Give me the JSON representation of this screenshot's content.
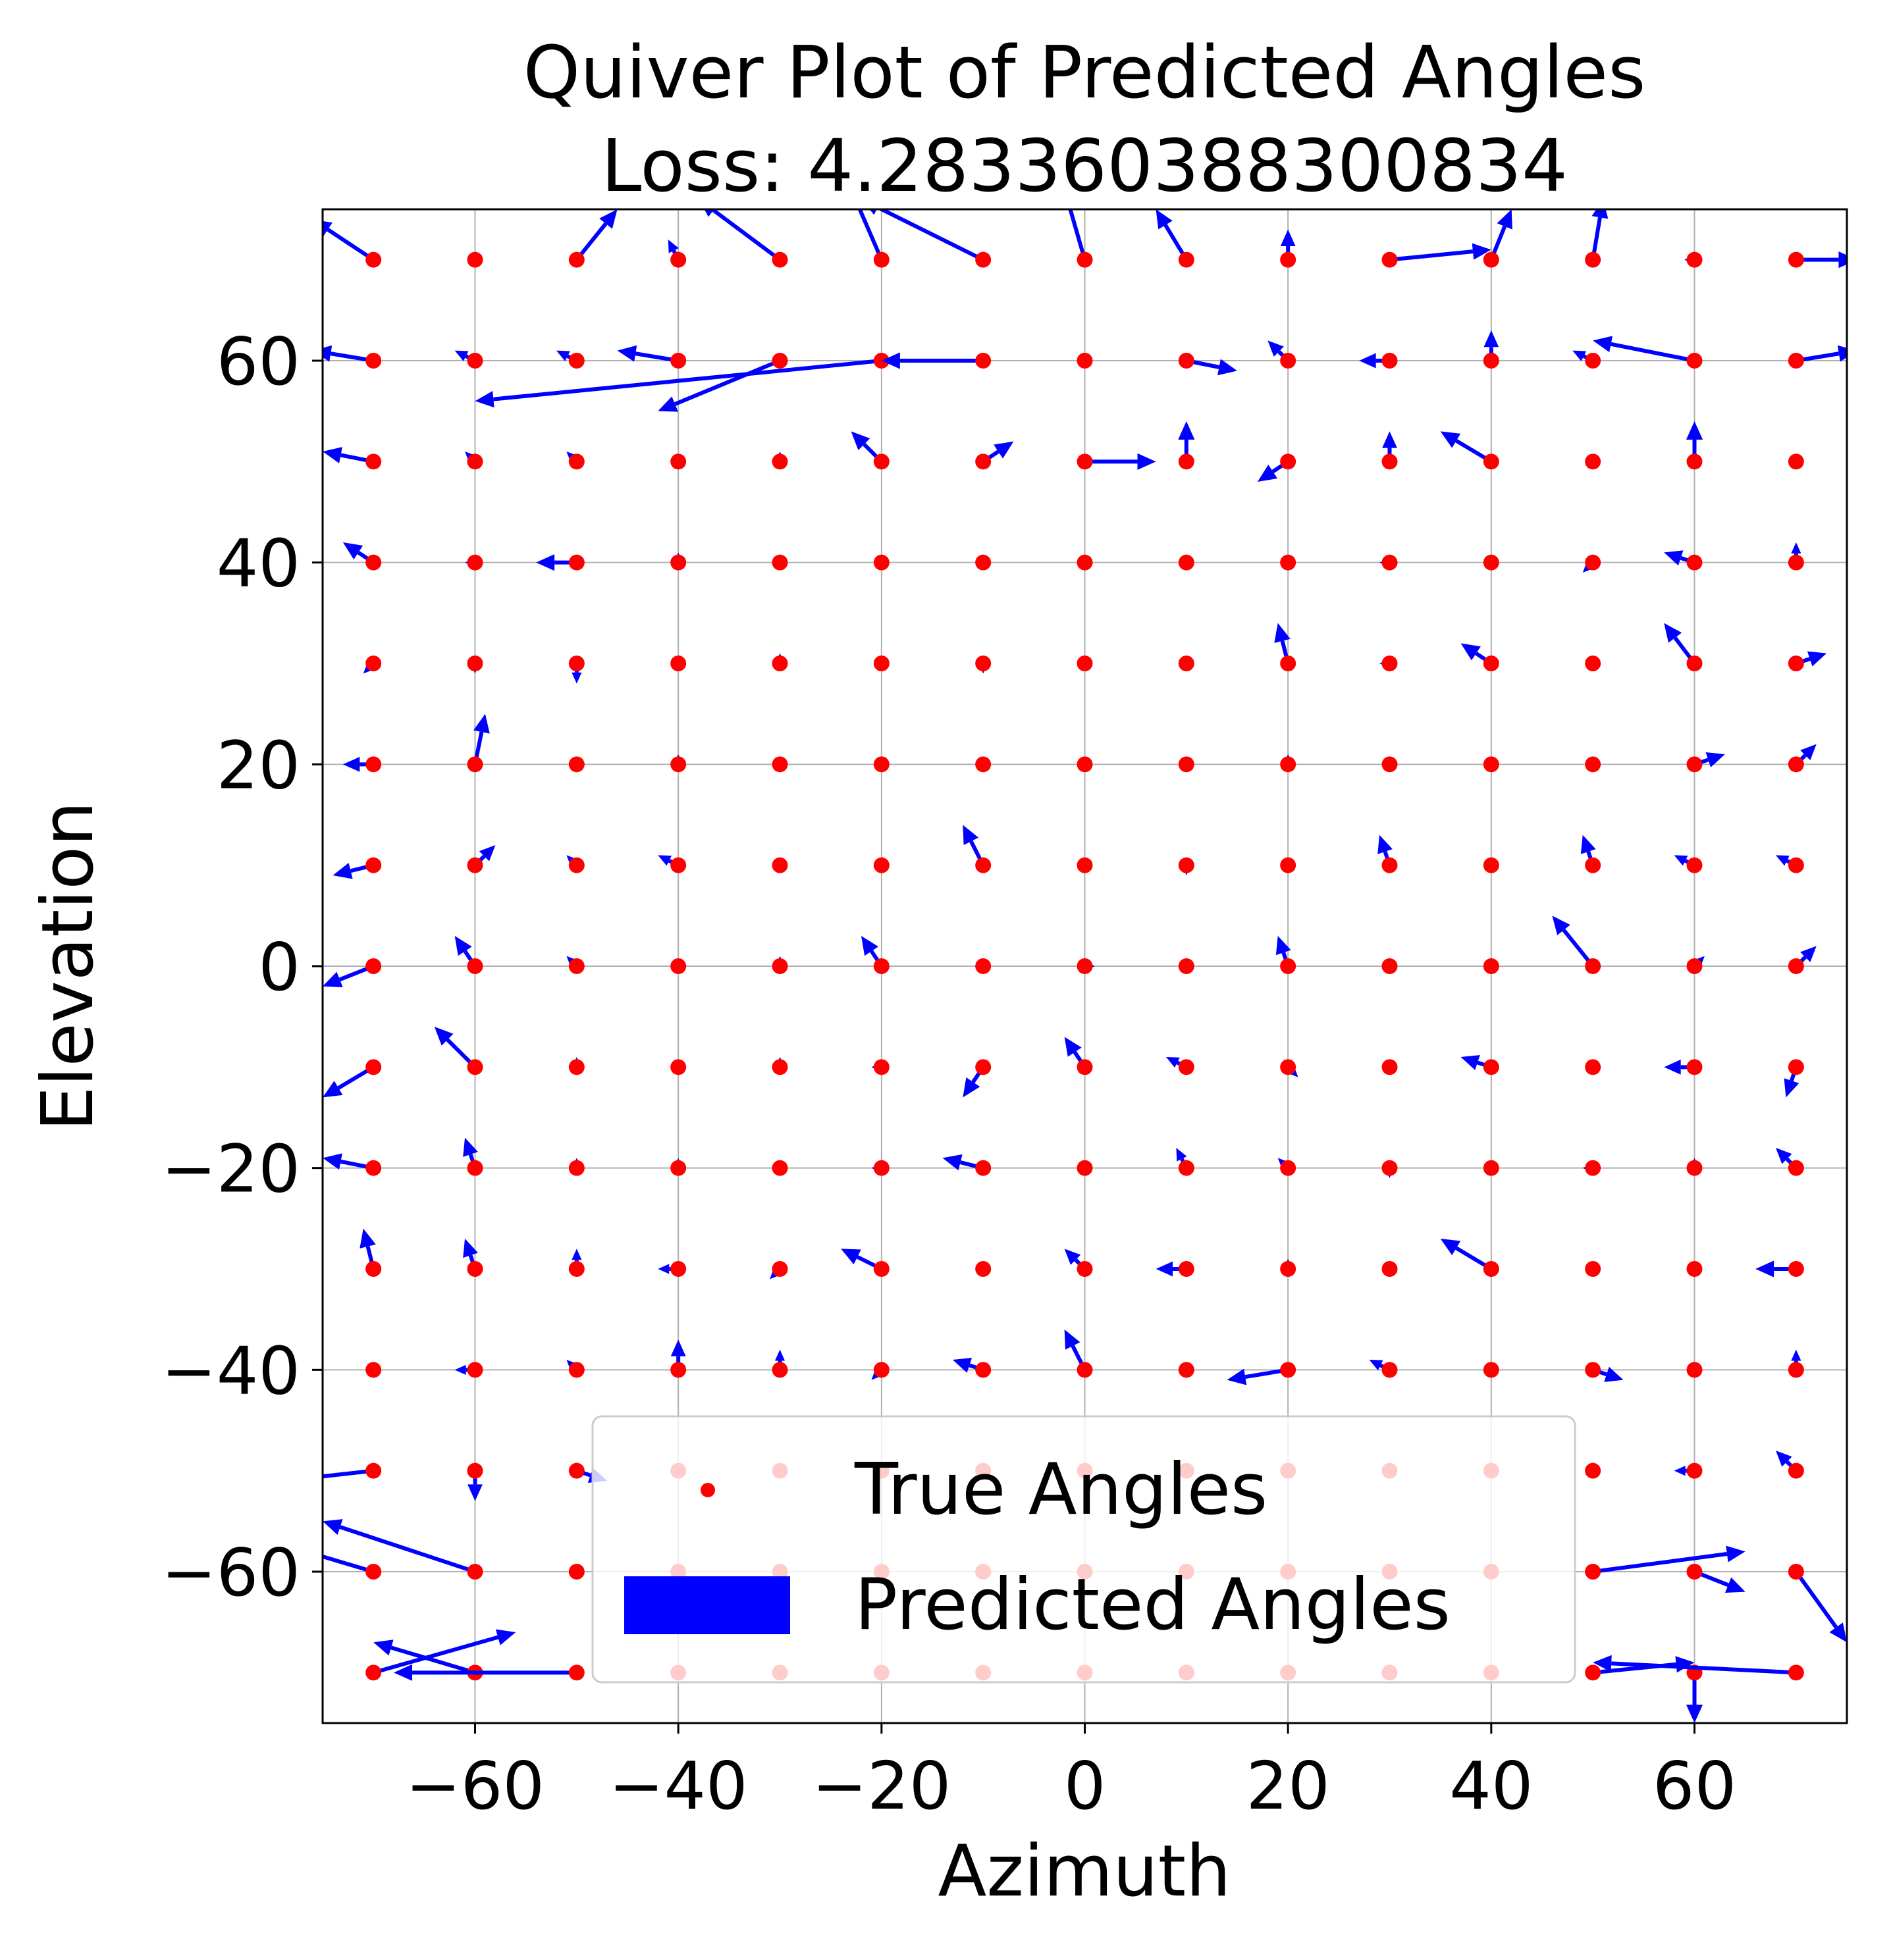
{
  "chart_data": {
    "type": "quiver",
    "title": "Quiver Plot of Predicted Angles",
    "subtitle": "Loss: 4.283360388300834",
    "xlabel": "Azimuth",
    "ylabel": "Elevation",
    "xlim": [
      -75,
      75
    ],
    "ylim": [
      -75,
      75
    ],
    "xticks": [
      -60,
      -40,
      -20,
      0,
      20,
      40,
      60
    ],
    "xtick_labels": [
      "−60",
      "−40",
      "−20",
      "0",
      "20",
      "40",
      "60"
    ],
    "yticks": [
      -60,
      -40,
      -20,
      0,
      20,
      40,
      60
    ],
    "ytick_labels": [
      "−60",
      "−40",
      "−20",
      "0",
      "20",
      "40",
      "60"
    ],
    "grid": true,
    "legend": {
      "placement": "lower center",
      "entries": [
        "True Angles",
        "Predicted Angles"
      ]
    },
    "colors": {
      "true": "#ff0000",
      "predicted": "#0000ff"
    },
    "azimuths": [
      -70,
      -60,
      -50,
      -40,
      -30,
      -20,
      -10,
      0,
      10,
      20,
      30,
      40,
      50,
      60,
      70
    ],
    "elevations": [
      70,
      60,
      50,
      40,
      30,
      20,
      10,
      0,
      -10,
      -20,
      -30,
      -40,
      -50,
      -60,
      -70
    ],
    "predicted_offsets": [
      [
        [
          -6,
          4
        ],
        [
          0,
          0
        ],
        [
          4,
          5
        ],
        [
          -1,
          2
        ],
        [
          -8,
          6
        ],
        [
          -3,
          7
        ],
        [
          -12,
          6
        ],
        [
          -2,
          7
        ],
        [
          -3,
          5
        ],
        [
          0,
          3
        ],
        [
          10,
          1
        ],
        [
          2,
          5
        ],
        [
          1,
          6
        ],
        [
          -1,
          0
        ],
        [
          6,
          0
        ]
      ],
      [
        [
          -6,
          1
        ],
        [
          -2,
          1
        ],
        [
          -2,
          1
        ],
        [
          -6,
          1
        ],
        [
          -12,
          -5
        ],
        [
          -40,
          -4
        ],
        [
          -10,
          0
        ],
        [
          0,
          0
        ],
        [
          5,
          -1
        ],
        [
          -2,
          2
        ],
        [
          -3,
          0
        ],
        [
          0,
          3
        ],
        [
          -2,
          1
        ],
        [
          -10,
          2
        ],
        [
          6,
          1
        ]
      ],
      [
        [
          -5,
          1
        ],
        [
          -1,
          1
        ],
        [
          -1,
          1
        ],
        [
          0,
          0
        ],
        [
          0,
          1
        ],
        [
          -3,
          3
        ],
        [
          3,
          2
        ],
        [
          7,
          0
        ],
        [
          0,
          4
        ],
        [
          -3,
          -2
        ],
        [
          0,
          3
        ],
        [
          -5,
          3
        ],
        [
          0,
          0
        ],
        [
          0,
          4
        ],
        [
          0,
          0
        ]
      ],
      [
        [
          -3,
          2
        ],
        [
          -1,
          0
        ],
        [
          -4,
          0
        ],
        [
          0,
          1
        ],
        [
          0,
          0
        ],
        [
          0,
          0
        ],
        [
          0,
          0
        ],
        [
          0,
          0
        ],
        [
          0,
          0
        ],
        [
          0,
          0
        ],
        [
          -1,
          0
        ],
        [
          0,
          0
        ],
        [
          -1,
          -1
        ],
        [
          -3,
          1
        ],
        [
          0,
          2
        ]
      ],
      [
        [
          -1,
          -1
        ],
        [
          0,
          -1
        ],
        [
          0,
          -2
        ],
        [
          0,
          0
        ],
        [
          0,
          1
        ],
        [
          0,
          0
        ],
        [
          0,
          -1
        ],
        [
          0,
          0
        ],
        [
          0,
          0
        ],
        [
          -1,
          4
        ],
        [
          -1,
          0
        ],
        [
          -3,
          2
        ],
        [
          0,
          0
        ],
        [
          -3,
          4
        ],
        [
          3,
          1
        ]
      ],
      [
        [
          -3,
          0
        ],
        [
          1,
          5
        ],
        [
          0,
          0
        ],
        [
          0,
          1
        ],
        [
          0,
          0
        ],
        [
          0,
          0
        ],
        [
          0,
          0
        ],
        [
          0,
          0
        ],
        [
          0,
          0
        ],
        [
          0,
          1
        ],
        [
          0,
          0
        ],
        [
          0,
          0
        ],
        [
          0,
          0
        ],
        [
          3,
          1
        ],
        [
          2,
          2
        ]
      ],
      [
        [
          -4,
          -1
        ],
        [
          2,
          2
        ],
        [
          -1,
          1
        ],
        [
          -2,
          1
        ],
        [
          0,
          0
        ],
        [
          0,
          0
        ],
        [
          -2,
          4
        ],
        [
          0,
          0
        ],
        [
          0,
          -1
        ],
        [
          0,
          0
        ],
        [
          -1,
          3
        ],
        [
          0,
          0
        ],
        [
          -1,
          3
        ],
        [
          -2,
          1
        ],
        [
          -2,
          1
        ]
      ],
      [
        [
          -5,
          -2
        ],
        [
          -2,
          3
        ],
        [
          -1,
          1
        ],
        [
          0,
          0
        ],
        [
          0,
          1
        ],
        [
          -2,
          3
        ],
        [
          0,
          0
        ],
        [
          1,
          0
        ],
        [
          0,
          0
        ],
        [
          -1,
          3
        ],
        [
          0,
          0
        ],
        [
          0,
          0
        ],
        [
          -4,
          5
        ],
        [
          1,
          1
        ],
        [
          2,
          2
        ]
      ],
      [
        [
          -5,
          -3
        ],
        [
          -4,
          4
        ],
        [
          0,
          1
        ],
        [
          0,
          0
        ],
        [
          0,
          1
        ],
        [
          -1,
          0
        ],
        [
          -2,
          -3
        ],
        [
          -2,
          3
        ],
        [
          -2,
          1
        ],
        [
          1,
          -1
        ],
        [
          0,
          0
        ],
        [
          -3,
          1
        ],
        [
          0,
          0
        ],
        [
          -3,
          0
        ],
        [
          -1,
          -3
        ]
      ],
      [
        [
          -5,
          1
        ],
        [
          -1,
          3
        ],
        [
          0,
          1
        ],
        [
          0,
          1
        ],
        [
          0,
          0
        ],
        [
          -1,
          0
        ],
        [
          -4,
          1
        ],
        [
          0,
          0
        ],
        [
          -1,
          2
        ],
        [
          -1,
          1
        ],
        [
          0,
          -1
        ],
        [
          0,
          0
        ],
        [
          -1,
          0
        ],
        [
          0,
          1
        ],
        [
          -2,
          2
        ]
      ],
      [
        [
          -1,
          4
        ],
        [
          -1,
          3
        ],
        [
          0,
          2
        ],
        [
          -2,
          0
        ],
        [
          -1,
          -1
        ],
        [
          -4,
          2
        ],
        [
          0,
          0
        ],
        [
          -2,
          2
        ],
        [
          -3,
          0
        ],
        [
          0,
          1
        ],
        [
          0,
          0
        ],
        [
          -5,
          3
        ],
        [
          0,
          0
        ],
        [
          0,
          0
        ],
        [
          -4,
          0
        ]
      ],
      [
        [
          0,
          0
        ],
        [
          -2,
          0
        ],
        [
          -1,
          1
        ],
        [
          0,
          3
        ],
        [
          0,
          2
        ],
        [
          -1,
          -1
        ],
        [
          -3,
          1
        ],
        [
          -2,
          4
        ],
        [
          0,
          0
        ],
        [
          -6,
          -1
        ],
        [
          -2,
          1
        ],
        [
          0,
          0
        ],
        [
          3,
          -1
        ],
        [
          0,
          0
        ],
        [
          0,
          2
        ]
      ],
      [
        [
          -9,
          -1
        ],
        [
          0,
          -3
        ],
        [
          3,
          -1
        ],
        [
          0,
          0
        ],
        [
          0,
          0
        ],
        [
          0,
          0
        ],
        [
          0,
          0
        ],
        [
          0,
          0
        ],
        [
          0,
          0
        ],
        [
          0,
          0
        ],
        [
          0,
          0
        ],
        [
          0,
          0
        ],
        [
          0,
          0
        ],
        [
          -2,
          0
        ],
        [
          -2,
          2
        ]
      ],
      [
        [
          -10,
          3
        ],
        [
          -15,
          5
        ],
        [
          0,
          0
        ],
        [
          0,
          0
        ],
        [
          0,
          0
        ],
        [
          0,
          0
        ],
        [
          0,
          0
        ],
        [
          0,
          0
        ],
        [
          0,
          0
        ],
        [
          0,
          0
        ],
        [
          0,
          0
        ],
        [
          0,
          0
        ],
        [
          15,
          2
        ],
        [
          5,
          -2
        ],
        [
          5,
          -7
        ]
      ],
      [
        [
          14,
          4
        ],
        [
          -10,
          3
        ],
        [
          -18,
          0
        ],
        [
          0,
          0
        ],
        [
          0,
          0
        ],
        [
          0,
          0
        ],
        [
          0,
          0
        ],
        [
          0,
          0
        ],
        [
          0,
          0
        ],
        [
          0,
          0
        ],
        [
          0,
          0
        ],
        [
          0,
          0
        ],
        [
          10,
          1
        ],
        [
          0,
          -5
        ],
        [
          -20,
          1
        ]
      ]
    ]
  }
}
